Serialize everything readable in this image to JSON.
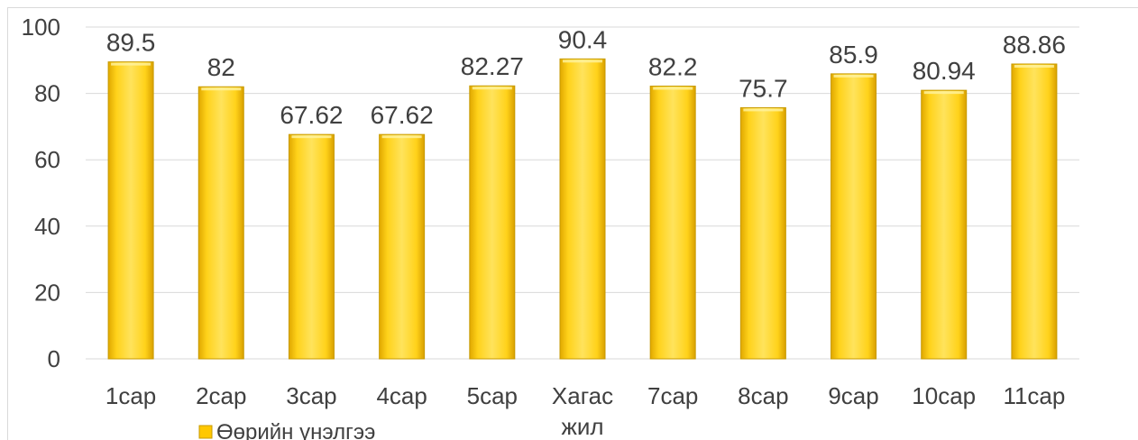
{
  "chart_data": {
    "type": "bar",
    "categories": [
      "1сар",
      "2сар",
      "3сар",
      "4сар",
      "5сар",
      "Хагас жил",
      "7сар",
      "8сар",
      "9сар",
      "10сар",
      "11сар"
    ],
    "series": [
      {
        "name": "Өөрийн үнэлгээ",
        "values": [
          89.5,
          82,
          67.62,
          67.62,
          82.27,
          90.4,
          82.2,
          75.7,
          85.9,
          80.94,
          88.86
        ]
      }
    ],
    "data_labels": [
      "89.5",
      "82",
      "67.62",
      "67.62",
      "82.27",
      "90.4",
      "82.2",
      "75.7",
      "85.9",
      "80.94",
      "88.86"
    ],
    "y_ticks": [
      "0",
      "20",
      "40",
      "60",
      "80",
      "100"
    ],
    "ylim": [
      0,
      100
    ],
    "grid": true,
    "legend_position": "bottom-left",
    "colors": {
      "bar": "#ffc800",
      "bar_edge": "#c79a00",
      "grid": "#d9d9d9",
      "text": "#404040"
    }
  }
}
